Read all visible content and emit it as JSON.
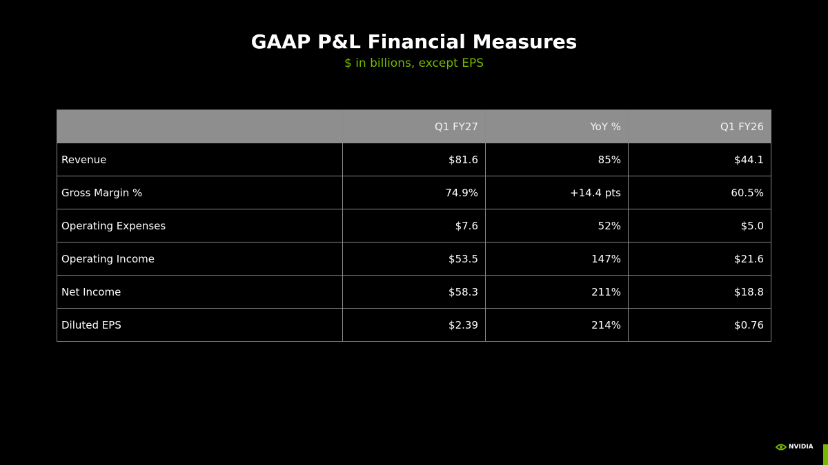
{
  "header": {
    "title": "GAAP P&L Financial Measures",
    "subtitle": "$ in billions, except EPS"
  },
  "table": {
    "columns": [
      "Q1 FY27",
      "YoY %",
      "Q1 FY26"
    ],
    "rows": [
      [
        "Revenue",
        "$81.6",
        "85%",
        "$44.1"
      ],
      [
        "Gross Margin %",
        "74.9%",
        "+14.4 pts",
        "60.5%"
      ],
      [
        "Operating Expenses",
        "$7.6",
        "52%",
        "$5.0"
      ],
      [
        "Operating Income",
        "$53.5",
        "147%",
        "$21.6"
      ],
      [
        "Net Income",
        "$58.3",
        "211%",
        "$18.8"
      ],
      [
        "Diluted EPS",
        "$2.39",
        "214%",
        "$0.76"
      ]
    ]
  },
  "footer": {
    "logo": "NVIDIA"
  }
}
